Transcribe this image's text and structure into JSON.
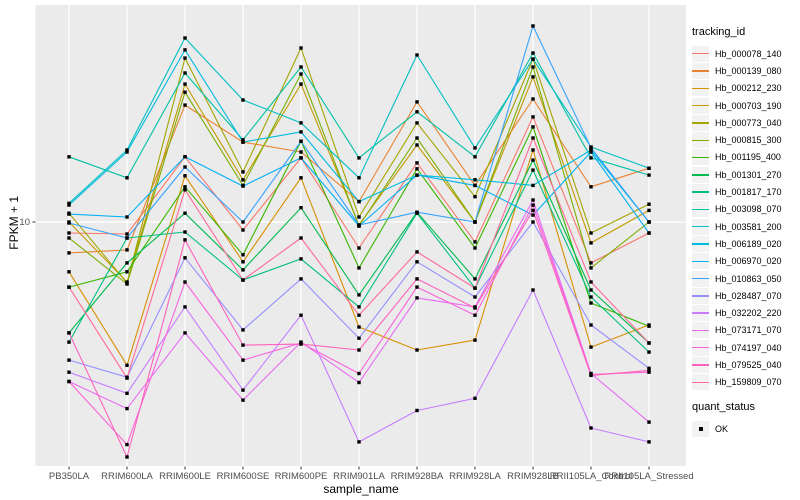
{
  "chart_data": {
    "type": "line",
    "title": "",
    "xlabel": "sample_name",
    "ylabel": "FPKM + 1",
    "yscale": "log10",
    "yticks": [
      10
    ],
    "ylim": [
      0.925,
      83.1
    ],
    "grid": true,
    "point_marker": "small-black-square",
    "categories": [
      "PB350LA",
      "RRIM600LA",
      "RRIM600LE",
      "RRIM600SE",
      "RRIM600PE",
      "RRIM901LA",
      "RRIM928BA",
      "RRIM928LA",
      "RRIM928LB",
      "RRII105LA_Control",
      "RRII105LA_Stressed"
    ],
    "legend": {
      "title": "tracking_id",
      "position": "right"
    },
    "legend2": {
      "title": "quant_status",
      "items": [
        {
          "label": "OK",
          "marker": "black-square"
        }
      ]
    },
    "series": [
      {
        "name": "Hb_000078_140",
        "color": "#F8766D",
        "values": [
          8.98,
          8.9,
          18.9,
          9.25,
          18.7,
          7.76,
          17.8,
          8.24,
          27.9,
          6.71,
          8.98
        ]
      },
      {
        "name": "Hb_000139_080",
        "color": "#EA8331",
        "values": [
          7.4,
          7.62,
          31.3,
          21.8,
          19.8,
          12.2,
          32.3,
          14.3,
          33.2,
          14.1,
          16.9
        ]
      },
      {
        "name": "Hb_000212_230",
        "color": "#D89000",
        "values": [
          6.15,
          2.47,
          15.7,
          6.78,
          15.4,
          3.59,
          2.87,
          3.16,
          20.2,
          2.95,
          3.66
        ]
      },
      {
        "name": "Hb_000703_190",
        "color": "#C49A00",
        "values": [
          10,
          5.57,
          38.4,
          15.1,
          38.4,
          9.71,
          21.2,
          10,
          41.2,
          8.16,
          11.2
        ]
      },
      {
        "name": "Hb_000773_040",
        "color": "#A3A500",
        "values": [
          10.9,
          5.52,
          49.5,
          16.3,
          54.6,
          10.5,
          26.3,
          12.8,
          49,
          8.98,
          11.9
        ]
      },
      {
        "name": "Hb_000815_300",
        "color": "#7CAE00",
        "values": [
          8.56,
          5.46,
          35.5,
          14.3,
          42.4,
          9.62,
          22.7,
          10,
          45.4,
          6.39,
          10
        ]
      },
      {
        "name": "Hb_001195_400",
        "color": "#39B600",
        "values": [
          5.3,
          6.15,
          14.1,
          7.26,
          22,
          6.39,
          16.8,
          7.76,
          25.3,
          4.54,
          3.62
        ]
      },
      {
        "name": "Hb_001301_270",
        "color": "#00BB4E",
        "values": [
          3.39,
          6.71,
          10.9,
          6.27,
          11.5,
          4.91,
          11,
          5.74,
          18.3,
          5.15,
          3.07
        ]
      },
      {
        "name": "Hb_001817_170",
        "color": "#00BF7D",
        "values": [
          3.1,
          8.56,
          9.07,
          5.68,
          6.98,
          4.37,
          10.9,
          5.25,
          16.6,
          4.81,
          2.81
        ]
      },
      {
        "name": "Hb_003098_070",
        "color": "#00C1A3",
        "values": [
          18.9,
          15.4,
          42.8,
          22.3,
          45.4,
          18.7,
          29.3,
          18.9,
          52,
          18.7,
          15.8
        ]
      },
      {
        "name": "Hb_003581_200",
        "color": "#00BFC4",
        "values": [
          12,
          20.2,
          60.2,
          32.9,
          26.3,
          15.4,
          51,
          20.6,
          49,
          20.8,
          16.9
        ]
      },
      {
        "name": "Hb_006189_020",
        "color": "#00BAE0",
        "values": [
          11.8,
          19.8,
          53.6,
          21.8,
          24.1,
          12.2,
          15.8,
          15.1,
          14.3,
          20.2,
          10
        ]
      },
      {
        "name": "Hb_006970_020",
        "color": "#00B0F6",
        "values": [
          10.8,
          10.5,
          18.9,
          14.2,
          18.7,
          9.62,
          15.8,
          14.3,
          10.7,
          19.8,
          8.98
        ]
      },
      {
        "name": "Hb_010863_050",
        "color": "#35A2FF",
        "values": [
          9.9,
          8.56,
          17.1,
          10,
          22,
          9.71,
          11,
          10,
          67.7,
          20.6,
          10
        ]
      },
      {
        "name": "Hb_028487_070",
        "color": "#9590FF",
        "values": [
          2.6,
          2.2,
          7.05,
          3.49,
          5.74,
          3.22,
          6.78,
          4.81,
          10,
          3.66,
          2.4
        ]
      },
      {
        "name": "Hb_032202_220",
        "color": "#C77CFF",
        "values": [
          2.31,
          1.88,
          4.37,
          1.94,
          4.03,
          1.17,
          1.59,
          1.79,
          5.15,
          1.34,
          1.17
        ]
      },
      {
        "name": "Hb_073171_070",
        "color": "#E76BF3",
        "values": [
          2.11,
          1.62,
          3.39,
          1.76,
          3.1,
          2.09,
          4.77,
          4.37,
          12.4,
          2.28,
          1.42
        ]
      },
      {
        "name": "Hb_074197_040",
        "color": "#FA62DB",
        "values": [
          2.11,
          1.14,
          5.57,
          2.6,
          3.07,
          2.28,
          5.3,
          4.03,
          11.8,
          2.26,
          2.31
        ]
      },
      {
        "name": "Hb_079525_040",
        "color": "#FF62BC",
        "values": [
          3.39,
          1.01,
          8.4,
          3.01,
          3.04,
          2.87,
          5.74,
          4.32,
          11.2,
          2.24,
          2.35
        ]
      },
      {
        "name": "Hb_159809_070",
        "color": "#FF6A98",
        "values": [
          5.3,
          2.18,
          13.7,
          5.68,
          8.56,
          4.03,
          7.47,
          5.25,
          22.7,
          5.57,
          3.07
        ]
      }
    ],
    "style": {
      "panel_bg": "#EBEBEB",
      "grid_color": "#FFFFFF",
      "tick_text_color": "#4D4D4D",
      "point_color": "#000000",
      "legend_key_bg": "#F2F2F2"
    }
  }
}
